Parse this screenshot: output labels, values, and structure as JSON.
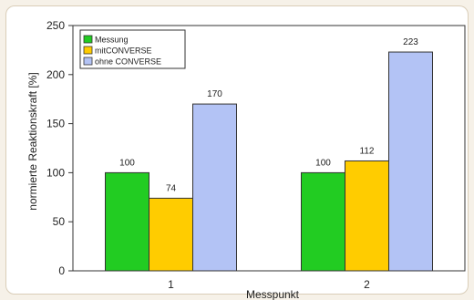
{
  "chart_data": {
    "type": "bar",
    "categories": [
      "1",
      "2"
    ],
    "series": [
      {
        "name": "Messung",
        "values": [
          100,
          100
        ],
        "color": "#22cc22"
      },
      {
        "name": "mitCONVERSE",
        "values": [
          74,
          112
        ],
        "color": "#ffcc00"
      },
      {
        "name": "ohne CONVERSE",
        "values": [
          170,
          223
        ],
        "color": "#b3c3f5"
      }
    ],
    "ylabel": "normierte Reaktionskraft [%]",
    "xlabel": "Messpunkt",
    "ylim": [
      0,
      250
    ],
    "yticks": [
      0,
      50,
      100,
      150,
      200,
      250
    ],
    "grid": false,
    "legend": "top-left"
  }
}
